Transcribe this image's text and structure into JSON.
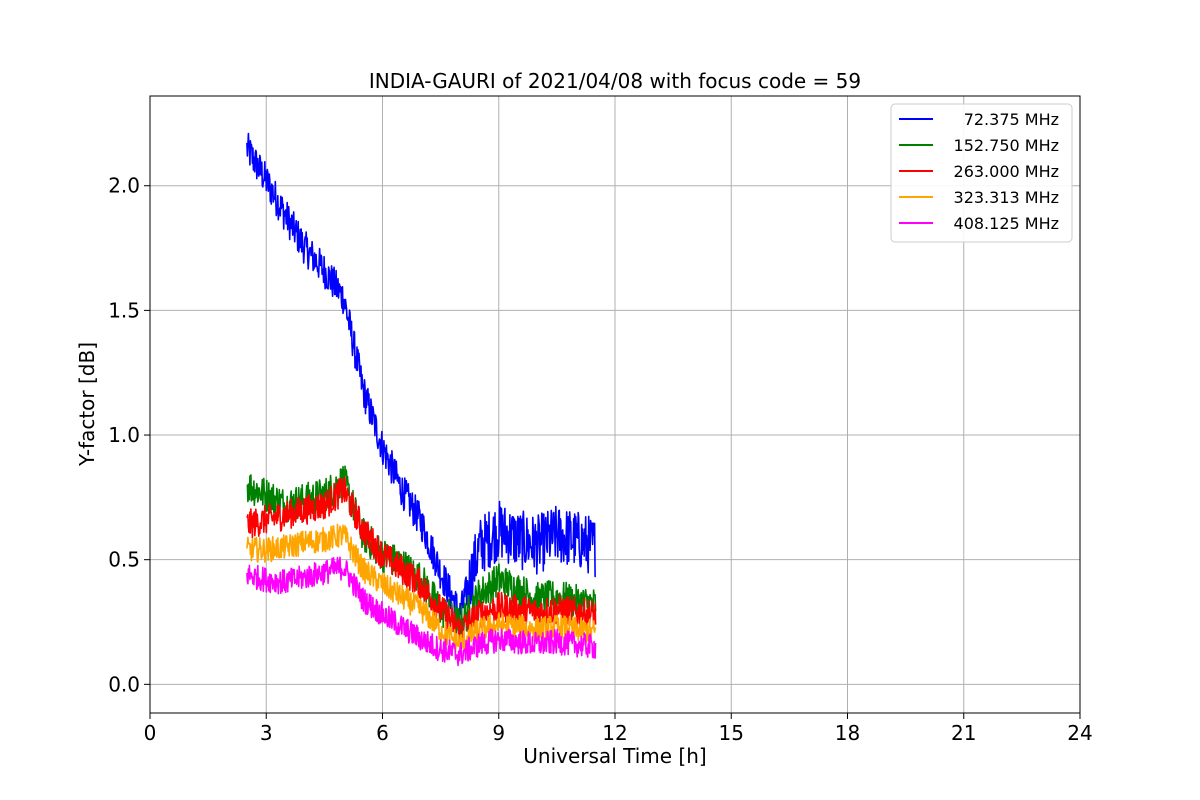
{
  "chart_data": {
    "type": "line",
    "title": "INDIA-GAURI of 2021/04/08 with focus code = 59",
    "xlabel": "Universal Time [h]",
    "ylabel": "Y-factor [dB]",
    "xlim": [
      0,
      24
    ],
    "ylim": [
      -0.115,
      2.36
    ],
    "xticks": [
      0,
      3,
      6,
      9,
      12,
      15,
      18,
      21,
      24
    ],
    "xtick_labels": [
      "0",
      "3",
      "6",
      "9",
      "12",
      "15",
      "18",
      "21",
      "24"
    ],
    "yticks": [
      0.0,
      0.5,
      1.0,
      1.5,
      2.0
    ],
    "ytick_labels": [
      "0.0",
      "0.5",
      "1.0",
      "1.5",
      "2.0"
    ],
    "grid": true,
    "legend_position": "top-right",
    "x": [
      2.5,
      3.0,
      3.5,
      4.0,
      4.5,
      5.0,
      5.5,
      6.0,
      6.5,
      7.0,
      7.5,
      8.0,
      8.5,
      9.0,
      9.5,
      10.0,
      10.5,
      11.0,
      11.5
    ],
    "series": [
      {
        "name": "72.375 MHz",
        "color": "#0000ff",
        "values": [
          2.15,
          2.02,
          1.88,
          1.75,
          1.66,
          1.55,
          1.18,
          0.95,
          0.78,
          0.65,
          0.45,
          0.28,
          0.55,
          0.62,
          0.58,
          0.56,
          0.6,
          0.58,
          0.55
        ]
      },
      {
        "name": "152.750 MHz",
        "color": "#008000",
        "values": [
          0.8,
          0.76,
          0.72,
          0.74,
          0.76,
          0.82,
          0.6,
          0.52,
          0.48,
          0.42,
          0.3,
          0.24,
          0.36,
          0.42,
          0.38,
          0.34,
          0.35,
          0.33,
          0.32
        ]
      },
      {
        "name": "263.000 MHz",
        "color": "#ff0000",
        "values": [
          0.64,
          0.66,
          0.68,
          0.7,
          0.72,
          0.78,
          0.62,
          0.52,
          0.46,
          0.4,
          0.3,
          0.22,
          0.28,
          0.31,
          0.3,
          0.29,
          0.3,
          0.29,
          0.28
        ]
      },
      {
        "name": "323.313 MHz",
        "color": "#ffa500",
        "values": [
          0.54,
          0.54,
          0.55,
          0.57,
          0.58,
          0.6,
          0.46,
          0.4,
          0.35,
          0.3,
          0.22,
          0.16,
          0.22,
          0.24,
          0.23,
          0.22,
          0.23,
          0.22,
          0.21
        ]
      },
      {
        "name": "408.125 MHz",
        "color": "#ff00ff",
        "values": [
          0.44,
          0.42,
          0.41,
          0.43,
          0.45,
          0.47,
          0.34,
          0.28,
          0.23,
          0.18,
          0.14,
          0.12,
          0.16,
          0.18,
          0.17,
          0.16,
          0.17,
          0.16,
          0.15
        ]
      }
    ]
  }
}
